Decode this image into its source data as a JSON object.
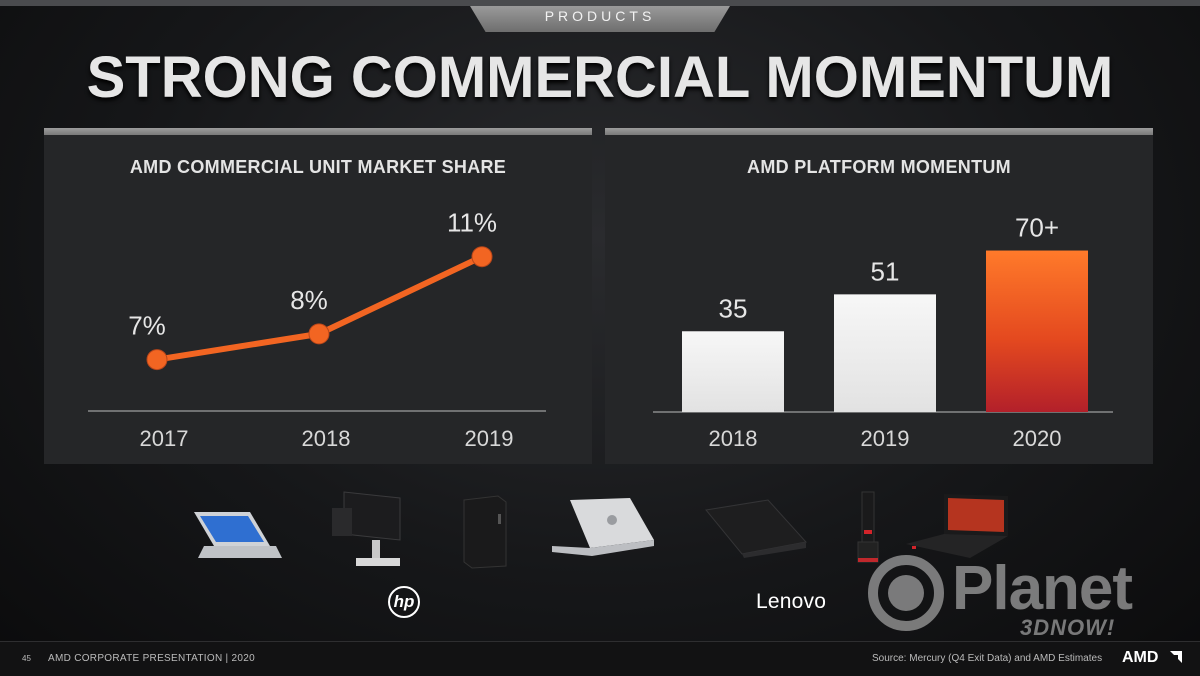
{
  "header": {
    "tab_label": "PRODUCTS",
    "title": "STRONG COMMERCIAL MOMENTUM"
  },
  "colors": {
    "accent_orange": "#f26522",
    "bar_white": "#f0f0f0",
    "bar_red_bottom": "#b3202a"
  },
  "chart_data": [
    {
      "type": "line",
      "title": "AMD COMMERCIAL  UNIT  MARKET SHARE",
      "categories": [
        "2017",
        "2018",
        "2019"
      ],
      "values": [
        7,
        8,
        11
      ],
      "labels": [
        "7%",
        "8%",
        "11%"
      ],
      "ylim": [
        5,
        12
      ],
      "color": "#f26522"
    },
    {
      "type": "bar",
      "title": "AMD PLATFORM  MOMENTUM",
      "categories": [
        "2018",
        "2019",
        "2020"
      ],
      "values": [
        35,
        51,
        70
      ],
      "labels": [
        "35",
        "51",
        "70+"
      ],
      "ylim": [
        0,
        75
      ],
      "highlight_index": 2
    }
  ],
  "devices": [
    {
      "name": "convertible-laptop-icon"
    },
    {
      "name": "all-in-one-monitor-icon"
    },
    {
      "name": "desktop-tower-icon"
    },
    {
      "name": "silver-laptop-icon"
    },
    {
      "name": "black-laptop-icon"
    },
    {
      "name": "tiny-desktop-icon"
    },
    {
      "name": "thinkpad-laptop-icon"
    }
  ],
  "brands": {
    "hp": "hp",
    "lenovo": "Lenovo"
  },
  "watermark": {
    "main": "Planet",
    "sub": "3DNOW!"
  },
  "footer": {
    "page_number": "45",
    "text": "AMD CORPORATE  PRESENTATION    |   2020",
    "source": "Source: Mercury (Q4 Exit Data) and AMD Estimates",
    "logo": "AMD"
  }
}
